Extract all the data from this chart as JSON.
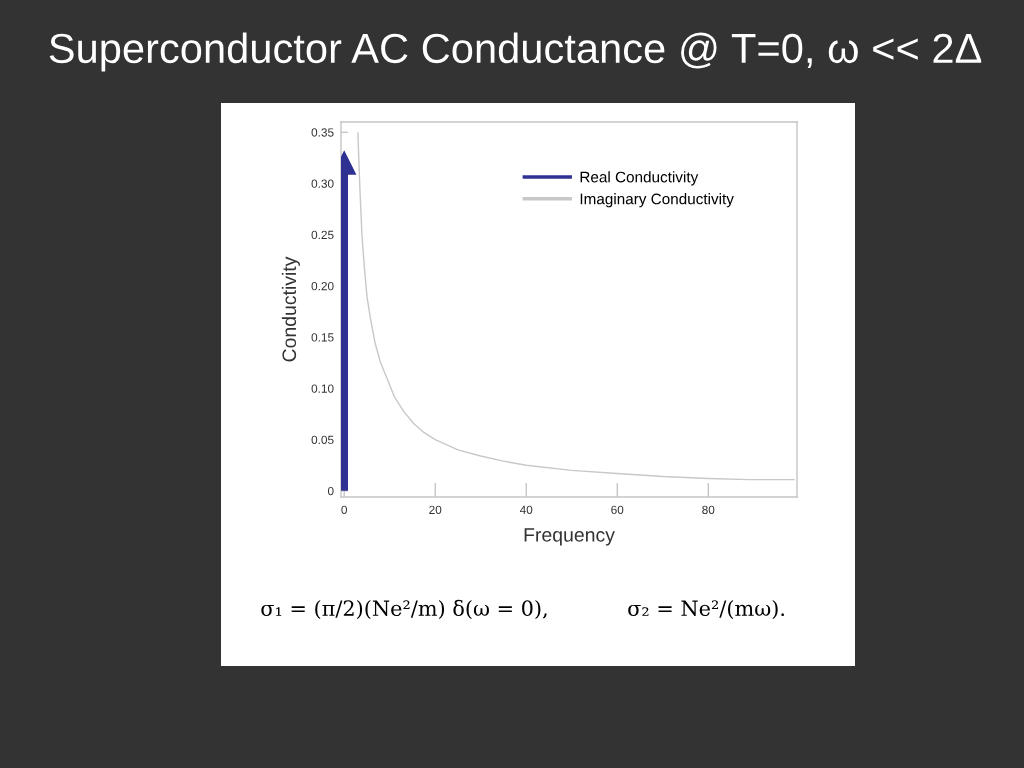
{
  "chart_data": {
    "type": "line",
    "title": "Superconductor AC Conductance @ T=0, ω << 2Δ",
    "xlabel": "Frequency",
    "ylabel": "Conductivity",
    "series": [
      {
        "name": "Real Conductivity",
        "color": "#2e3192",
        "x": [
          0,
          0
        ],
        "values": [
          0,
          0.32
        ],
        "marker": "triangle"
      },
      {
        "name": "Imaginary Conductivity",
        "color": "#c8c8c8",
        "x": [
          3,
          3.5,
          3.9,
          4.4,
          5,
          5.7,
          6.8,
          8,
          9.4,
          11,
          13,
          15.2,
          17.5,
          20,
          25,
          30,
          35,
          40,
          50,
          60,
          70,
          80,
          89,
          99
        ],
        "values": [
          0.35,
          0.29,
          0.25,
          0.22,
          0.19,
          0.17,
          0.144,
          0.125,
          0.11,
          0.092,
          0.078,
          0.066,
          0.057,
          0.05,
          0.04,
          0.034,
          0.029,
          0.025,
          0.02,
          0.017,
          0.014,
          0.012,
          0.011,
          0.011
        ]
      }
    ],
    "xlim": [
      -0.7,
      99.5
    ],
    "ylim": [
      -0.006,
      0.36
    ],
    "xticks": [
      0,
      20,
      40,
      60,
      80
    ],
    "yticks": [
      0,
      0.05,
      {
        "value": 0.1,
        "label": "0.10"
      },
      0.15,
      {
        "value": 0.2,
        "label": "0.20"
      },
      0.25,
      {
        "value": 0.3,
        "label": "0.30"
      },
      0.35
    ],
    "legend": "top right",
    "annotations": [
      "σ₁ = (π/2)(Ne²/m) δ(ω = 0),",
      "σ₂ = Ne²/(mω)."
    ]
  }
}
